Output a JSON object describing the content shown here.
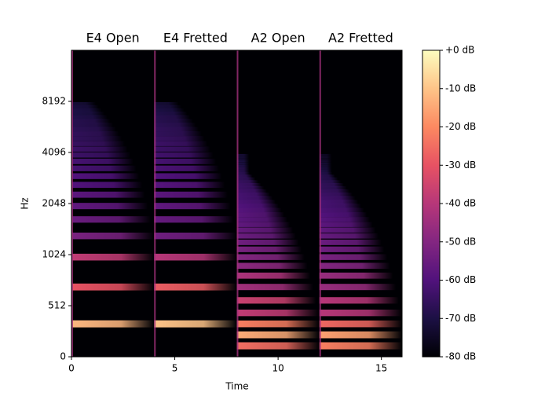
{
  "chart_data": {
    "type": "spectrogram",
    "x_label": "Time",
    "y_label": "Hz",
    "xlim": [
      0,
      16
    ],
    "xticks": [
      0,
      5,
      10,
      15
    ],
    "ylim": [
      0,
      16384
    ],
    "yticks": [
      0,
      512,
      1024,
      2048,
      4096,
      8192
    ],
    "yscale": "symlog",
    "linthresh": 512,
    "colormap": "magma",
    "segments": [
      {
        "name": "E4 Open",
        "start": 0,
        "end": 4,
        "f0": 330,
        "levels": [
          -12,
          -30,
          -38,
          -52,
          -55,
          -57,
          -58,
          -60,
          -60,
          -62,
          -62,
          -64,
          -64,
          -65,
          -66,
          -66,
          -67,
          -68,
          -68,
          -69,
          -70,
          -70,
          -71,
          -72
        ]
      },
      {
        "name": "E4 Fretted",
        "start": 4,
        "end": 8,
        "f0": 330,
        "levels": [
          -10,
          -28,
          -40,
          -54,
          -56,
          -57,
          -58,
          -59,
          -60,
          -61,
          -62,
          -63,
          -64,
          -64,
          -65,
          -66,
          -66,
          -67,
          -68,
          -68,
          -69,
          -70,
          -71,
          -72
        ]
      },
      {
        "name": "A2 Open",
        "start": 8,
        "end": 12,
        "f0": 110,
        "levels": [
          -25,
          -14,
          -22,
          -38,
          -36,
          -44,
          -42,
          -48,
          -50,
          -52,
          -54,
          -55,
          -56,
          -57,
          -58,
          -58,
          -59,
          -60,
          -61,
          -62,
          -62,
          -63,
          -64,
          -64,
          -65,
          -66,
          -66,
          -67,
          -68,
          -68,
          -69,
          -70,
          -70,
          -71,
          -72,
          -72
        ]
      },
      {
        "name": "A2 Fretted",
        "start": 12,
        "end": 16,
        "f0": 110,
        "levels": [
          -22,
          -16,
          -26,
          -40,
          -40,
          -46,
          -46,
          -50,
          -52,
          -54,
          -55,
          -56,
          -57,
          -58,
          -59,
          -60,
          -61,
          -62,
          -62,
          -63,
          -64,
          -65,
          -66,
          -66,
          -67,
          -68,
          -68,
          -69,
          -70,
          -71,
          -72,
          -72,
          -73,
          -74,
          -74,
          -75
        ]
      }
    ],
    "colorbar": {
      "lim": [
        -80,
        0
      ],
      "ticks": [
        {
          "value": 0,
          "label": "+0 dB"
        },
        {
          "value": -10,
          "label": "-10 dB"
        },
        {
          "value": -20,
          "label": "-20 dB"
        },
        {
          "value": -30,
          "label": "-30 dB"
        },
        {
          "value": -40,
          "label": "-40 dB"
        },
        {
          "value": -50,
          "label": "-50 dB"
        },
        {
          "value": -60,
          "label": "-60 dB"
        },
        {
          "value": -70,
          "label": "-70 dB"
        },
        {
          "value": -80,
          "label": "-80 dB"
        }
      ]
    }
  }
}
